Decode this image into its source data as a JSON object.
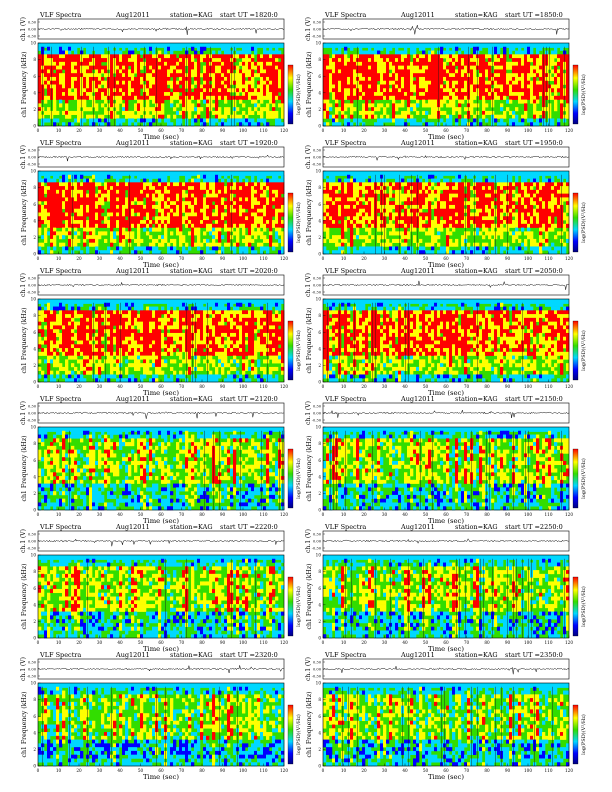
{
  "figure": {
    "colormap": [
      "#0000ff",
      "#00d8ff",
      "#32dd00",
      "#ffff00",
      "#ff0000"
    ],
    "panels": [
      {
        "title_left": "VLF Spectra",
        "title_mid": "Aug12011",
        "station": "station=KAG",
        "start": "start UT =1820:0"
      },
      {
        "title_left": "VLF Spectra",
        "title_mid": "Aug12011",
        "station": "station=KAG",
        "start": "start UT =1850:0"
      },
      {
        "title_left": "VLF Spectra",
        "title_mid": "Aug12011",
        "station": "station=KAG",
        "start": "start UT =1920:0"
      },
      {
        "title_left": "VLF Spectra",
        "title_mid": "Aug12011",
        "station": "station=KAG",
        "start": "start UT =1950:0"
      },
      {
        "title_left": "VLF Spectra",
        "title_mid": "Aug12011",
        "station": "station=KAG",
        "start": "start UT =2020:0"
      },
      {
        "title_left": "VLF Spectra",
        "title_mid": "Aug12011",
        "station": "station=KAG",
        "start": "start UT =2050:0"
      },
      {
        "title_left": "VLF Spectra",
        "title_mid": "Aug12011",
        "station": "station=KAG",
        "start": "start UT =2120:0"
      },
      {
        "title_left": "VLF Spectra",
        "title_mid": "Aug12011",
        "station": "station=KAG",
        "start": "start UT =2150:0"
      },
      {
        "title_left": "VLF Spectra",
        "title_mid": "Aug12011",
        "station": "station=KAG",
        "start": "start UT =2220:0"
      },
      {
        "title_left": "VLF Spectra",
        "title_mid": "Aug12011",
        "station": "station=KAG",
        "start": "start UT =2250:0"
      },
      {
        "title_left": "VLF Spectra",
        "title_mid": "Aug12011",
        "station": "station=KAG",
        "start": "start UT =2320:0"
      },
      {
        "title_left": "VLF Spectra",
        "title_mid": "Aug12011",
        "station": "station=KAG",
        "start": "start UT =2350:0"
      }
    ]
  },
  "chart_data": {
    "type": "heatmap",
    "panel_count": 12,
    "xlabel": "Time (sec)",
    "xlim": [
      0,
      120
    ],
    "x_ticks": [
      "0",
      "10",
      "20",
      "30",
      "40",
      "50",
      "60",
      "70",
      "80",
      "90",
      "100",
      "110",
      "120"
    ],
    "ylabel_spectrogram": "ch1 Frequency (kHz)",
    "ylim_spectrogram": [
      0,
      10
    ],
    "y_ticks_spectrogram": [
      "0",
      "2",
      "4",
      "6",
      "8",
      "10"
    ],
    "ylabel_waveform": "ch.1 (V)",
    "y_ticks_waveform": [
      "0.30",
      "0.00",
      "-0.30"
    ],
    "colorbar_label": "log(PSD)(V²/Hz)"
  }
}
